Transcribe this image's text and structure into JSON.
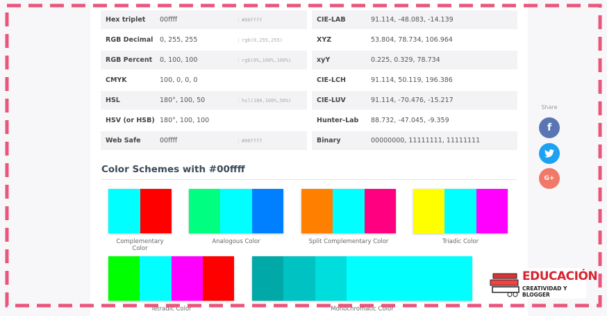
{
  "color_table_left": {
    "rows": [
      {
        "label": "Hex triplet",
        "value": "00ffff",
        "css": "#00ffff"
      },
      {
        "label": "RGB Decimal",
        "value": "0, 255, 255",
        "css": "rgb(0,255,255)"
      },
      {
        "label": "RGB Percent",
        "value": "0, 100, 100",
        "css": "rgb(0%,100%,100%)"
      },
      {
        "label": "CMYK",
        "value": "100, 0, 0, 0",
        "css": null
      },
      {
        "label": "HSL",
        "value": "180°, 100, 50",
        "css": "hsl(180,100%,50%)"
      },
      {
        "label": "HSV (or HSB)",
        "value": "180°, 100, 100",
        "css": null
      },
      {
        "label": "Web Safe",
        "value": "00ffff",
        "css": "#00ffff"
      }
    ]
  },
  "color_table_right": {
    "rows": [
      {
        "label": "CIE-LAB",
        "value": "91.114, -48.083, -14.139"
      },
      {
        "label": "XYZ",
        "value": "53.804, 78.734, 106.964"
      },
      {
        "label": "xyY",
        "value": "0.225, 0.329, 78.734"
      },
      {
        "label": "CIE-LCH",
        "value": "91.114, 50.119, 196.386"
      },
      {
        "label": "CIE-LUV",
        "value": "91.114, -70.476, -15.217"
      },
      {
        "label": "Hunter-Lab",
        "value": "88.732, -47.045, -9.359"
      },
      {
        "label": "Binary",
        "value": "00000000, 11111111, 11111111"
      }
    ]
  },
  "share": {
    "title": "Share",
    "facebook": "f",
    "google": "G+"
  },
  "schemes": {
    "title": "Color Schemes with #00ffff",
    "items": [
      {
        "name": "Complementary Color",
        "colors": [
          "#00ffff",
          "#ff0000"
        ]
      },
      {
        "name": "Analogous Color",
        "colors": [
          "#00ff80",
          "#00ffff",
          "#0080ff"
        ]
      },
      {
        "name": "Split Complementary Color",
        "colors": [
          "#ff8000",
          "#00ffff",
          "#ff0080"
        ]
      },
      {
        "name": "Triadic Color",
        "colors": [
          "#ffff00",
          "#00ffff",
          "#ff00ff"
        ]
      },
      {
        "name": "Tetradic Color",
        "colors": [
          "#00ff00",
          "#00ffff",
          "#ff00ff",
          "#ff0000"
        ]
      },
      {
        "name": "Monochromatic Color",
        "colors": [
          "#00a8a8",
          "#00c2c2",
          "#00dddd",
          "#00ffff"
        ]
      }
    ]
  },
  "watermark": {
    "title": "EDUCACIÓN",
    "subtitle": "CREATIVIDAD Y BLOGGER"
  }
}
